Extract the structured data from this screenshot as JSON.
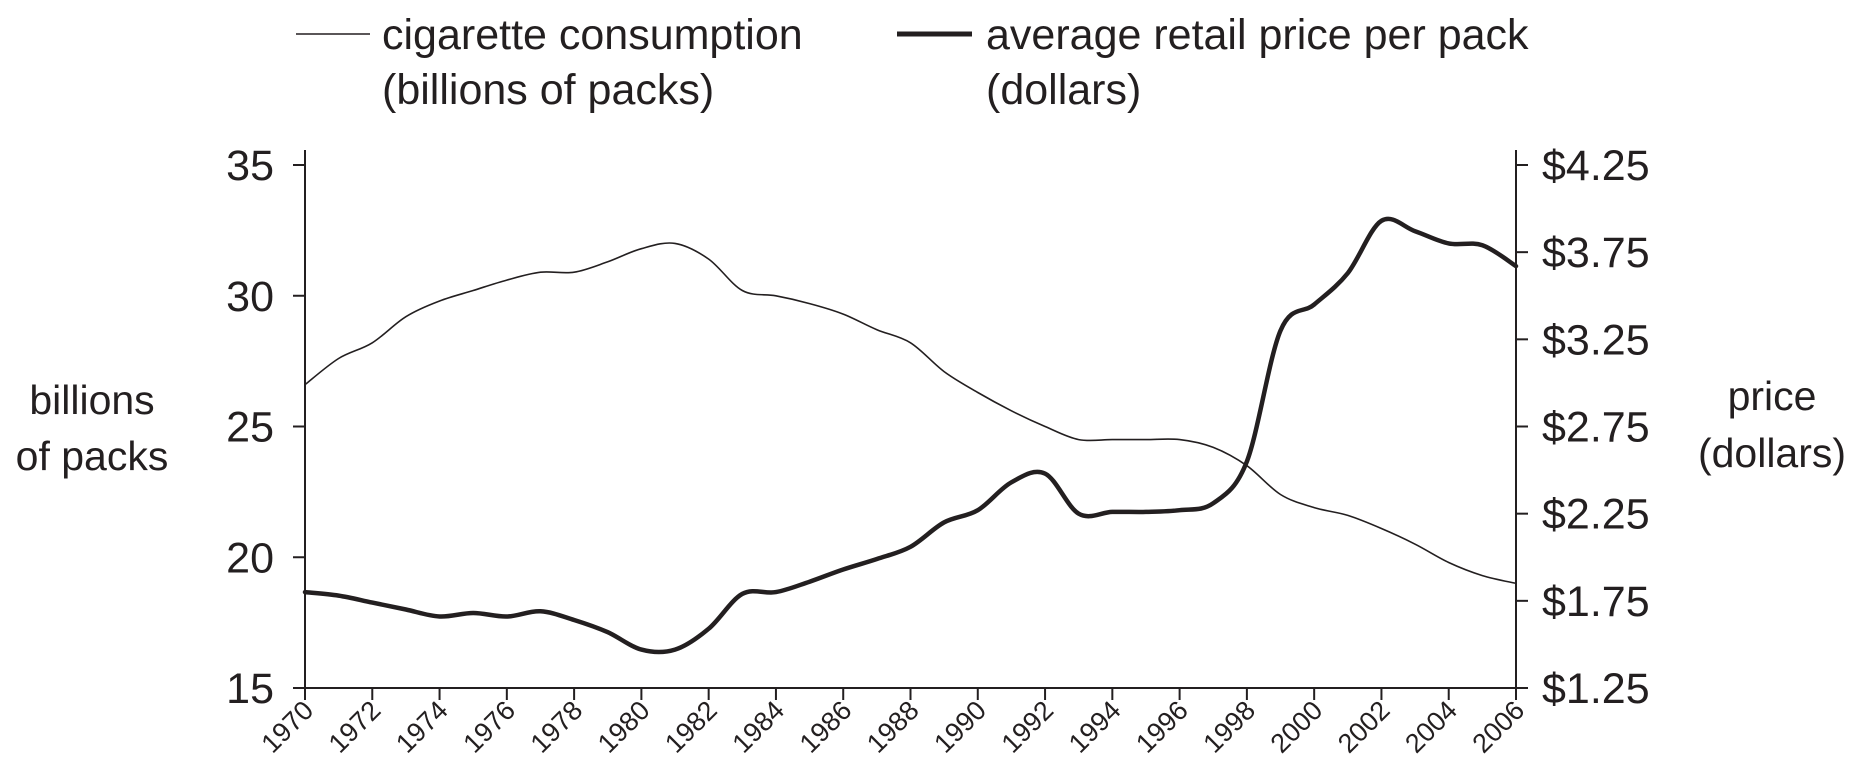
{
  "colors": {
    "ink": "#231f20",
    "background": "#ffffff"
  },
  "chart_data": {
    "type": "line",
    "title": "",
    "legend": {
      "placement": "top",
      "entries": [
        {
          "line1": "cigarette consumption",
          "line2": "(billions of packs)",
          "style": "thin"
        },
        {
          "line1": "average retail price per pack",
          "line2": "(dollars)",
          "style": "thick"
        }
      ]
    },
    "left_axis": {
      "title_line1": "billions",
      "title_line2": "of packs",
      "ticks": [
        15,
        20,
        25,
        30,
        35
      ],
      "tick_labels": [
        "15",
        "20",
        "25",
        "30",
        "35"
      ],
      "ylim": [
        15,
        35
      ]
    },
    "right_axis": {
      "title_line1": "price",
      "title_line2": "(dollars)",
      "ticks": [
        1.25,
        1.75,
        2.25,
        2.75,
        3.25,
        3.75,
        4.25
      ],
      "tick_labels": [
        "$1.25",
        "$1.75",
        "$2.25",
        "$2.75",
        "$3.25",
        "$3.75",
        "$4.25"
      ],
      "ylim": [
        1.25,
        4.25
      ]
    },
    "x_axis": {
      "xlim": [
        1970,
        2006
      ],
      "ticks": [
        1970,
        1972,
        1974,
        1976,
        1978,
        1980,
        1982,
        1984,
        1986,
        1988,
        1990,
        1992,
        1994,
        1996,
        1998,
        2000,
        2002,
        2004,
        2006
      ],
      "tick_labels": [
        "1970",
        "1972",
        "1974",
        "1976",
        "1978",
        "1980",
        "1982",
        "1984",
        "1986",
        "1988",
        "1990",
        "1992",
        "1994",
        "1996",
        "1998",
        "2000",
        "2002",
        "2004",
        "2006"
      ]
    },
    "grid": false,
    "series": [
      {
        "name": "cigarette consumption (billions of packs)",
        "axis": "left",
        "style": "thin",
        "x": [
          1970,
          1971,
          1972,
          1973,
          1974,
          1975,
          1976,
          1977,
          1978,
          1979,
          1980,
          1981,
          1982,
          1983,
          1984,
          1985,
          1986,
          1987,
          1988,
          1989,
          1990,
          1991,
          1992,
          1993,
          1994,
          1995,
          1996,
          1997,
          1998,
          1999,
          2000,
          2001,
          2002,
          2003,
          2004,
          2005,
          2006
        ],
        "values": [
          26.6,
          27.6,
          28.2,
          29.2,
          29.8,
          30.2,
          30.6,
          30.9,
          30.9,
          31.3,
          31.8,
          32.0,
          31.4,
          30.2,
          30.0,
          29.7,
          29.3,
          28.7,
          28.2,
          27.1,
          26.3,
          25.6,
          25.0,
          24.5,
          24.5,
          24.5,
          24.5,
          24.2,
          23.5,
          22.4,
          21.9,
          21.6,
          21.1,
          20.5,
          19.8,
          19.3,
          19.0
        ]
      },
      {
        "name": "average retail price per pack (dollars)",
        "axis": "right",
        "style": "thick",
        "x": [
          1970,
          1971,
          1972,
          1973,
          1974,
          1975,
          1976,
          1977,
          1978,
          1979,
          1980,
          1981,
          1982,
          1983,
          1984,
          1985,
          1986,
          1987,
          1988,
          1989,
          1990,
          1991,
          1992,
          1993,
          1994,
          1995,
          1996,
          1997,
          1998,
          1999,
          2000,
          2001,
          2002,
          2003,
          2004,
          2005,
          2006
        ],
        "values": [
          1.8,
          1.78,
          1.74,
          1.7,
          1.66,
          1.68,
          1.66,
          1.69,
          1.64,
          1.57,
          1.47,
          1.47,
          1.59,
          1.79,
          1.8,
          1.86,
          1.93,
          1.99,
          2.06,
          2.2,
          2.27,
          2.43,
          2.48,
          2.25,
          2.26,
          2.26,
          2.27,
          2.31,
          2.55,
          3.3,
          3.45,
          3.63,
          3.93,
          3.87,
          3.8,
          3.79,
          3.67
        ]
      }
    ]
  }
}
